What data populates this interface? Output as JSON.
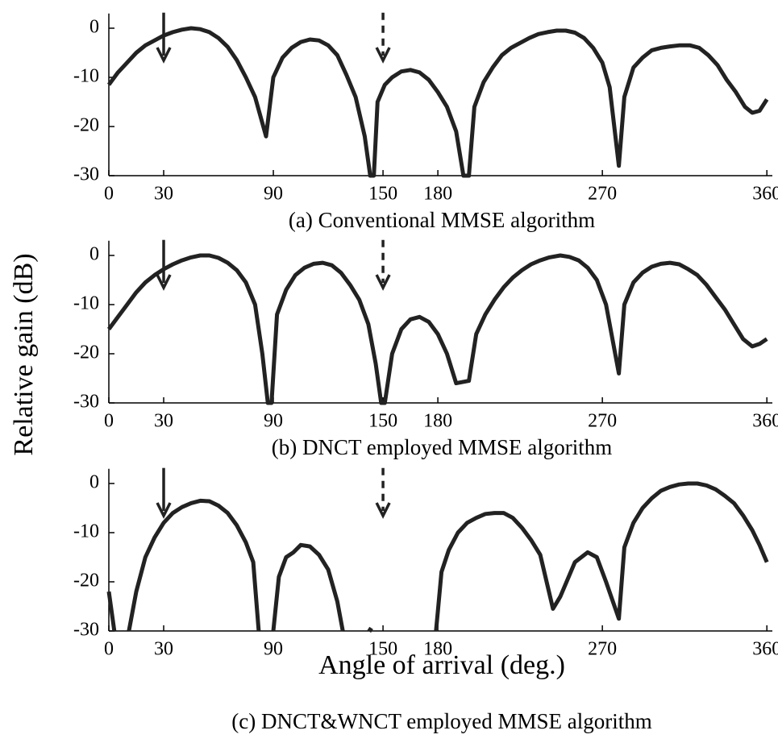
{
  "y_label": "Relative gain (dB)",
  "x_label": "Angle of arrival  (deg.)",
  "chart_data": [
    {
      "type": "line",
      "caption": "(a) Conventional MMSE algorithm",
      "xlim": [
        0,
        363
      ],
      "ylim": [
        -30,
        3
      ],
      "xticks": [
        0,
        30,
        90,
        150,
        180,
        270,
        360
      ],
      "yticks": [
        0,
        -10,
        -20,
        -30
      ],
      "x": [
        0,
        5,
        10,
        15,
        20,
        25,
        30,
        35,
        40,
        45,
        50,
        55,
        60,
        65,
        70,
        75,
        80,
        86,
        90,
        95,
        100,
        105,
        110,
        115,
        120,
        125,
        130,
        135,
        140,
        143,
        145,
        147,
        151,
        155,
        160,
        165,
        170,
        175,
        180,
        185,
        190,
        194,
        197,
        200,
        205,
        210,
        215,
        220,
        225,
        230,
        235,
        240,
        245,
        250,
        255,
        260,
        265,
        270,
        274,
        279,
        282,
        287,
        292,
        297,
        302,
        307,
        312,
        318,
        323,
        328,
        333,
        338,
        343,
        348,
        352,
        356,
        360
      ],
      "series": [
        {
          "color": "#222222",
          "values": [
            -11.5,
            -9,
            -7,
            -5,
            -3.5,
            -2.5,
            -1.5,
            -0.8,
            -0.3,
            0,
            -0.2,
            -0.8,
            -2,
            -3.8,
            -6.5,
            -10,
            -14,
            -22,
            -10,
            -6,
            -4,
            -2.8,
            -2.3,
            -2.5,
            -3.5,
            -5.5,
            -9.5,
            -14,
            -22,
            -30,
            -30,
            -15,
            -11.5,
            -10,
            -8.8,
            -8.5,
            -9,
            -10.5,
            -13,
            -16,
            -21,
            -30,
            -30,
            -16,
            -11,
            -8,
            -5.5,
            -4,
            -3,
            -2,
            -1.2,
            -0.8,
            -0.5,
            -0.5,
            -0.9,
            -2,
            -4,
            -7,
            -12,
            -28,
            -14,
            -8,
            -6,
            -4.5,
            -4,
            -3.7,
            -3.5,
            -3.5,
            -4,
            -5.5,
            -7.5,
            -10.5,
            -13,
            -16,
            -17.2,
            -16.8,
            -14.5
          ]
        }
      ]
    },
    {
      "type": "line",
      "caption": "(b) DNCT employed MMSE algorithm",
      "xlim": [
        0,
        363
      ],
      "ylim": [
        -30,
        3
      ],
      "xticks": [
        0,
        30,
        90,
        150,
        180,
        270,
        360
      ],
      "yticks": [
        0,
        -10,
        -20,
        -30
      ],
      "x": [
        0,
        5,
        10,
        15,
        20,
        25,
        30,
        35,
        40,
        45,
        50,
        55,
        60,
        65,
        70,
        75,
        80,
        84,
        87,
        89,
        92,
        97,
        102,
        107,
        112,
        117,
        122,
        127,
        132,
        137,
        142,
        146,
        149,
        151,
        155,
        160,
        165,
        170,
        175,
        180,
        185,
        190,
        197,
        201,
        206,
        211,
        216,
        221,
        226,
        231,
        236,
        241,
        247,
        252,
        257,
        262,
        267,
        272,
        275,
        279,
        282,
        287,
        292,
        297,
        302,
        307,
        312,
        317,
        322,
        327,
        332,
        337,
        342,
        347,
        352,
        356,
        360
      ],
      "series": [
        {
          "color": "#222222",
          "values": [
            -15,
            -12.5,
            -10,
            -7.5,
            -5.5,
            -4,
            -2.8,
            -1.8,
            -1,
            -0.4,
            0,
            0,
            -0.5,
            -1.5,
            -3,
            -5.5,
            -10,
            -20,
            -30,
            -30,
            -12,
            -7,
            -4,
            -2.5,
            -1.7,
            -1.5,
            -2,
            -3.5,
            -6,
            -9,
            -14,
            -22,
            -30,
            -30,
            -20,
            -15,
            -13,
            -12.5,
            -13.5,
            -16,
            -20,
            -26,
            -25.5,
            -16,
            -12,
            -9,
            -6.5,
            -4.5,
            -3,
            -1.8,
            -1,
            -0.4,
            0,
            -0.3,
            -1,
            -2.5,
            -5,
            -10,
            -16,
            -24,
            -10,
            -5.5,
            -3.5,
            -2.3,
            -1.7,
            -1.5,
            -1.8,
            -2.8,
            -4,
            -6,
            -8.5,
            -11,
            -14,
            -17,
            -18.5,
            -18,
            -17
          ]
        }
      ]
    },
    {
      "type": "line",
      "caption": "(c) DNCT&WNCT employed MMSE algorithm",
      "xlim": [
        0,
        363
      ],
      "ylim": [
        -30,
        3
      ],
      "xticks": [
        0,
        30,
        90,
        150,
        180,
        270,
        360
      ],
      "yticks": [
        0,
        -10,
        -20,
        -30
      ],
      "x": [
        0,
        3,
        6,
        11,
        15,
        20,
        25,
        30,
        35,
        40,
        45,
        50,
        55,
        60,
        65,
        70,
        75,
        79,
        82,
        86,
        90,
        93,
        97,
        101,
        105,
        110,
        115,
        120,
        125,
        128,
        135,
        142,
        144,
        160,
        179,
        180,
        182,
        186,
        191,
        196,
        201,
        206,
        211,
        216,
        221,
        226,
        231,
        236,
        243,
        247,
        255,
        262,
        267,
        272,
        279,
        282,
        287,
        292,
        297,
        302,
        307,
        312,
        317,
        322,
        327,
        332,
        337,
        342,
        347,
        352,
        356,
        360
      ],
      "series": [
        {
          "color": "#222222",
          "values": [
            -22,
            -30,
            null,
            -30,
            -22,
            -15,
            -11,
            -8,
            -6,
            -4.8,
            -4,
            -3.5,
            -3.6,
            -4.5,
            -6,
            -8.5,
            -12,
            -16,
            -30,
            null,
            -30,
            -19,
            -15,
            -14,
            -12.5,
            -12.8,
            -14.5,
            -17.5,
            -24,
            -30,
            null,
            -29.5,
            -30,
            null,
            -30,
            -26,
            -18,
            -13.5,
            -10,
            -8,
            -7,
            -6.2,
            -6,
            -6,
            -7,
            -9,
            -11.5,
            -14.5,
            -25.5,
            -23,
            -16,
            -14,
            -15,
            -20,
            -27.5,
            -13,
            -8,
            -5,
            -3,
            -1.5,
            -0.7,
            -0.2,
            0,
            0,
            -0.4,
            -1.2,
            -2.5,
            -4,
            -6.5,
            -9.5,
            -12.5,
            -16
          ]
        }
      ]
    }
  ]
}
